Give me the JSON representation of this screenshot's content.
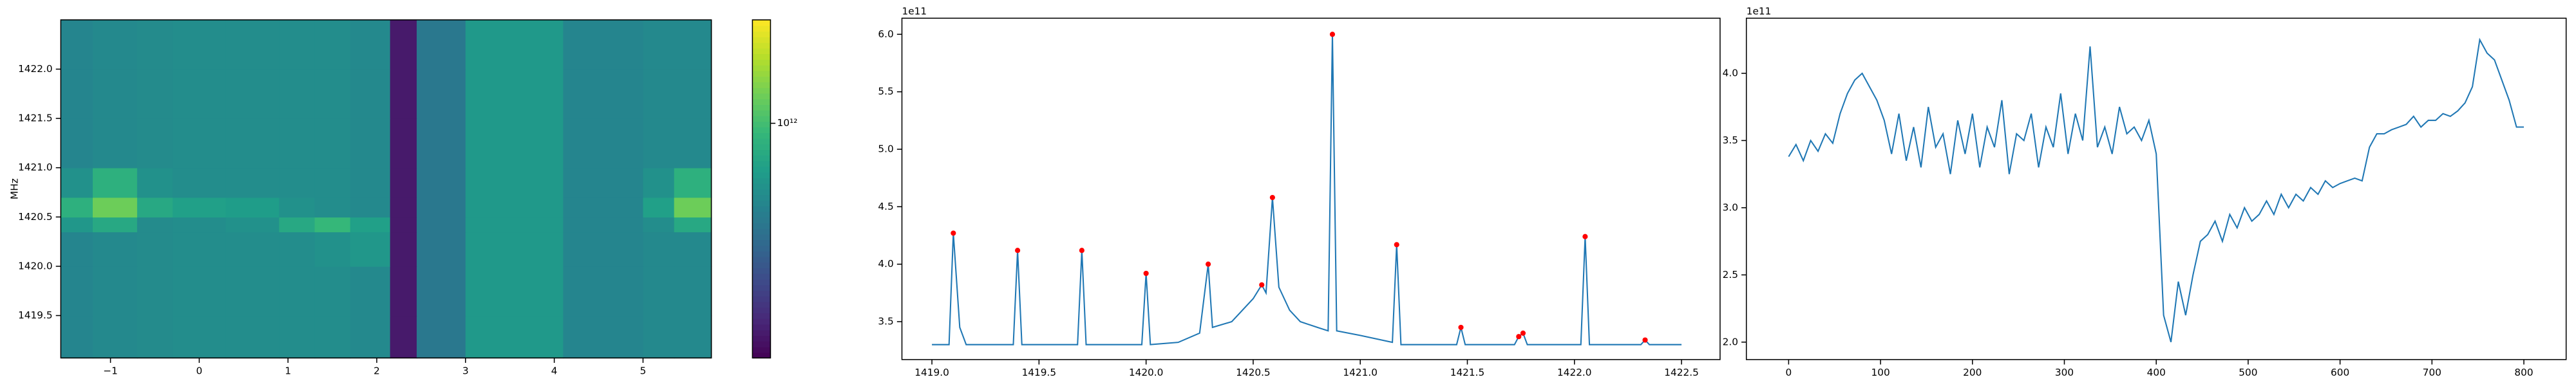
{
  "chart_data": [
    {
      "type": "heatmap",
      "ylabel": "MHz",
      "colormap": "viridis",
      "xbins": [
        -1.56,
        -1.2,
        -0.7,
        -0.3,
        0.3,
        0.9,
        1.3,
        1.7,
        2.15,
        2.45,
        3.0,
        4.1,
        5.0,
        5.35,
        5.77
      ],
      "ybins": [
        1419.07,
        1419.5,
        1420.0,
        1420.35,
        1420.5,
        1420.7,
        1421.0,
        1421.5,
        1422.0,
        1422.5
      ],
      "z": [
        [
          660000000000.0,
          680000000000.0,
          690000000000.0,
          700000000000.0,
          700000000000.0,
          700000000000.0,
          700000000000.0,
          680000000000.0,
          340000000000.0,
          600000000000.0,
          760000000000.0,
          660000000000.0,
          680000000000.0,
          680000000000.0
        ],
        [
          660000000000.0,
          680000000000.0,
          690000000000.0,
          700000000000.0,
          700000000000.0,
          700000000000.0,
          700000000000.0,
          680000000000.0,
          340000000000.0,
          600000000000.0,
          760000000000.0,
          660000000000.0,
          680000000000.0,
          680000000000.0
        ],
        [
          660000000000.0,
          680000000000.0,
          690000000000.0,
          700000000000.0,
          700000000000.0,
          700000000000.0,
          720000000000.0,
          750000000000.0,
          340000000000.0,
          600000000000.0,
          760000000000.0,
          660000000000.0,
          680000000000.0,
          680000000000.0
        ],
        [
          750000000000.0,
          850000000000.0,
          690000000000.0,
          700000000000.0,
          720000000000.0,
          850000000000.0,
          950000000000.0,
          800000000000.0,
          340000000000.0,
          600000000000.0,
          760000000000.0,
          660000000000.0,
          700000000000.0,
          850000000000.0
        ],
        [
          900000000000.0,
          1150000000000.0,
          850000000000.0,
          800000000000.0,
          780000000000.0,
          720000000000.0,
          700000000000.0,
          680000000000.0,
          340000000000.0,
          600000000000.0,
          760000000000.0,
          660000000000.0,
          800000000000.0,
          1150000000000.0
        ],
        [
          720000000000.0,
          900000000000.0,
          720000000000.0,
          700000000000.0,
          700000000000.0,
          700000000000.0,
          700000000000.0,
          680000000000.0,
          340000000000.0,
          600000000000.0,
          760000000000.0,
          660000000000.0,
          720000000000.0,
          900000000000.0
        ],
        [
          660000000000.0,
          680000000000.0,
          690000000000.0,
          700000000000.0,
          700000000000.0,
          700000000000.0,
          700000000000.0,
          680000000000.0,
          340000000000.0,
          600000000000.0,
          760000000000.0,
          660000000000.0,
          680000000000.0,
          680000000000.0
        ],
        [
          660000000000.0,
          680000000000.0,
          690000000000.0,
          700000000000.0,
          700000000000.0,
          700000000000.0,
          700000000000.0,
          680000000000.0,
          340000000000.0,
          600000000000.0,
          760000000000.0,
          660000000000.0,
          680000000000.0,
          680000000000.0
        ],
        [
          660000000000.0,
          680000000000.0,
          690000000000.0,
          700000000000.0,
          700000000000.0,
          700000000000.0,
          700000000000.0,
          680000000000.0,
          340000000000.0,
          600000000000.0,
          760000000000.0,
          660000000000.0,
          680000000000.0,
          680000000000.0
        ]
      ],
      "xlim": [
        -1.56,
        5.77
      ],
      "ylim": [
        1419.07,
        1422.5
      ],
      "xticks": [
        {
          "value": -1,
          "label": "−1"
        },
        0,
        1,
        2,
        3,
        4,
        5
      ],
      "yticks": [
        1419.5,
        {
          "value": 1420,
          "label": "1420.0"
        },
        1420.5,
        {
          "value": 1421,
          "label": "1421.0"
        },
        1421.5,
        {
          "value": 1422,
          "label": "1422.0"
        }
      ],
      "colorbar": {
        "log": true,
        "clim": [
          300000000000.0,
          1700000000000.0
        ],
        "ticks": [
          {
            "value": 1000000000000.0,
            "label": "10¹²"
          }
        ]
      }
    },
    {
      "type": "line",
      "offset_label": "1e11",
      "color": "#1f77b4",
      "x": [
        1419.0,
        1419.08,
        1419.1,
        1419.13,
        1419.16,
        1419.38,
        1419.4,
        1419.42,
        1419.68,
        1419.7,
        1419.72,
        1419.98,
        1420.0,
        1420.02,
        1420.15,
        1420.25,
        1420.29,
        1420.31,
        1420.4,
        1420.5,
        1420.54,
        1420.56,
        1420.59,
        1420.62,
        1420.67,
        1420.72,
        1420.8,
        1420.85,
        1420.87,
        1420.89,
        1421.0,
        1421.15,
        1421.17,
        1421.19,
        1421.45,
        1421.47,
        1421.49,
        1421.72,
        1421.74,
        1421.76,
        1421.78,
        1422.03,
        1422.05,
        1422.07,
        1422.31,
        1422.33,
        1422.35,
        1422.5
      ],
      "values": [
        3.3,
        3.3,
        4.27,
        3.45,
        3.3,
        3.3,
        4.12,
        3.3,
        3.3,
        4.12,
        3.3,
        3.3,
        3.92,
        3.3,
        3.32,
        3.4,
        4.0,
        3.45,
        3.5,
        3.7,
        3.82,
        3.75,
        4.58,
        3.8,
        3.6,
        3.5,
        3.45,
        3.42,
        6.0,
        3.42,
        3.38,
        3.32,
        4.17,
        3.3,
        3.3,
        3.45,
        3.3,
        3.3,
        3.37,
        3.4,
        3.3,
        3.3,
        4.24,
        3.3,
        3.3,
        3.34,
        3.3,
        3.3
      ],
      "peaks": {
        "color": "#ff0000",
        "x": [
          1419.1,
          1419.4,
          1419.7,
          1420.0,
          1420.29,
          1420.54,
          1420.59,
          1420.87,
          1421.17,
          1421.47,
          1421.74,
          1421.76,
          1422.05,
          1422.33
        ],
        "values": [
          4.27,
          4.12,
          4.12,
          3.92,
          4.0,
          3.82,
          4.58,
          6.0,
          4.17,
          3.45,
          3.37,
          3.4,
          4.24,
          3.34
        ]
      },
      "xlim": [
        1418.86,
        1422.68
      ],
      "ylim": [
        3.17,
        6.14
      ],
      "xticks": [
        {
          "value": 1419,
          "label": "1419.0"
        },
        1419.5,
        {
          "value": 1420,
          "label": "1420.0"
        },
        1420.5,
        {
          "value": 1421,
          "label": "1421.0"
        },
        1421.5,
        {
          "value": 1422,
          "label": "1422.0"
        },
        1422.5
      ],
      "yticks": [
        3.5,
        {
          "value": 4,
          "label": "4.0"
        },
        4.5,
        {
          "value": 5,
          "label": "5.0"
        },
        5.5,
        {
          "value": 6,
          "label": "6.0"
        }
      ]
    },
    {
      "type": "line",
      "offset_label": "1e11",
      "color": "#1f77b4",
      "x": [
        0,
        8,
        16,
        24,
        32,
        40,
        48,
        56,
        64,
        72,
        80,
        88,
        96,
        104,
        112,
        120,
        128,
        136,
        144,
        152,
        160,
        168,
        176,
        184,
        192,
        200,
        208,
        216,
        224,
        232,
        240,
        248,
        256,
        264,
        272,
        280,
        288,
        296,
        304,
        312,
        320,
        328,
        336,
        344,
        352,
        360,
        368,
        376,
        384,
        392,
        400,
        408,
        416,
        424,
        432,
        440,
        448,
        456,
        464,
        472,
        480,
        488,
        496,
        504,
        512,
        520,
        528,
        536,
        544,
        552,
        560,
        568,
        576,
        584,
        592,
        600,
        608,
        616,
        624,
        632,
        640,
        648,
        656,
        664,
        672,
        680,
        688,
        696,
        704,
        712,
        720,
        728,
        736,
        744,
        752,
        760,
        768,
        776,
        784,
        792,
        800
      ],
      "values": [
        3.38,
        3.47,
        3.35,
        3.5,
        3.42,
        3.55,
        3.48,
        3.7,
        3.85,
        3.95,
        4.0,
        3.9,
        3.8,
        3.65,
        3.4,
        3.7,
        3.35,
        3.6,
        3.3,
        3.75,
        3.45,
        3.55,
        3.25,
        3.65,
        3.4,
        3.7,
        3.3,
        3.6,
        3.45,
        3.8,
        3.25,
        3.55,
        3.5,
        3.7,
        3.3,
        3.6,
        3.45,
        3.85,
        3.4,
        3.7,
        3.5,
        4.2,
        3.45,
        3.6,
        3.4,
        3.75,
        3.55,
        3.6,
        3.5,
        3.65,
        3.4,
        2.2,
        2.0,
        2.45,
        2.2,
        2.5,
        2.75,
        2.8,
        2.9,
        2.75,
        2.95,
        2.85,
        3.0,
        2.9,
        2.95,
        3.05,
        2.95,
        3.1,
        3.0,
        3.1,
        3.05,
        3.15,
        3.1,
        3.2,
        3.15,
        3.18,
        3.2,
        3.22,
        3.2,
        3.45,
        3.55,
        3.55,
        3.58,
        3.6,
        3.62,
        3.68,
        3.6,
        3.65,
        3.65,
        3.7,
        3.68,
        3.72,
        3.78,
        3.9,
        4.25,
        4.15,
        4.1,
        3.95,
        3.8,
        3.6,
        3.6
      ],
      "xlim": [
        -46,
        846
      ],
      "ylim": [
        1.87,
        4.41
      ],
      "xticks": [
        0,
        100,
        200,
        300,
        400,
        500,
        600,
        700,
        800
      ],
      "yticks": [
        {
          "value": 2,
          "label": "2.0"
        },
        2.5,
        {
          "value": 3,
          "label": "3.0"
        },
        3.5,
        {
          "value": 4,
          "label": "4.0"
        }
      ]
    }
  ]
}
